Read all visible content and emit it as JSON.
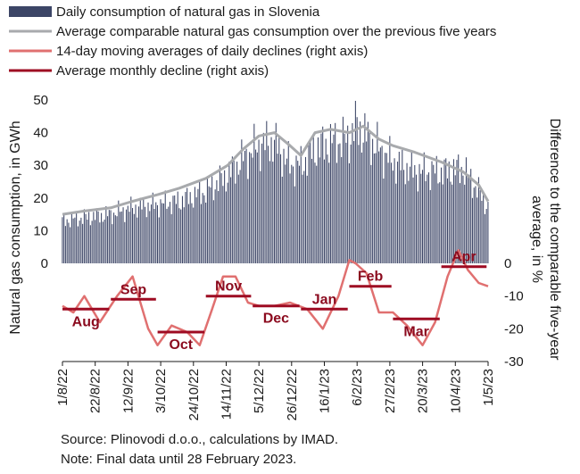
{
  "chart_data": {
    "type": "bar+line",
    "legend": [
      {
        "name": "Daily consumption of natural gas in Slovenia",
        "color": "#3c4566",
        "kind": "bar"
      },
      {
        "name": "Average comparable natural gas consumption over the previous five years",
        "color": "#a8aaad",
        "kind": "line"
      },
      {
        "name": "14-day moving averages of daily declines (right axis)",
        "color": "#e07070",
        "kind": "line"
      },
      {
        "name": "Average monthly decline (right axis)",
        "color": "#9e0b22",
        "kind": "segment"
      }
    ],
    "ylabel_left": "Natural gas consumption, in GWh",
    "ylabel_right": "Difference to the comparable five-year average, in %",
    "left_axis": {
      "min": 0,
      "max": 50,
      "ticks": [
        "0",
        "10",
        "20",
        "30",
        "40",
        "50"
      ]
    },
    "right_axis": {
      "min": -30,
      "max": 0,
      "ticks": [
        "0",
        "-10",
        "-20",
        "-30"
      ]
    },
    "x_range": [
      "2022-08-01",
      "2023-05-01"
    ],
    "x_ticks": [
      "1/8/22",
      "22/8/22",
      "12/9/22",
      "3/10/22",
      "24/10/22",
      "14/11/22",
      "5/12/22",
      "26/12/22",
      "16/1/23",
      "6/2/23",
      "27/2/23",
      "20/3/23",
      "10/4/23",
      "1/5/23"
    ],
    "five_year_avg": {
      "x": [
        "2022-08-01",
        "2022-08-15",
        "2022-09-01",
        "2022-09-15",
        "2022-10-01",
        "2022-10-15",
        "2022-11-01",
        "2022-11-15",
        "2022-11-25",
        "2022-12-05",
        "2022-12-15",
        "2022-12-25",
        "2023-01-01",
        "2023-01-10",
        "2023-01-20",
        "2023-02-01",
        "2023-02-10",
        "2023-02-20",
        "2023-03-01",
        "2023-03-15",
        "2023-04-01",
        "2023-04-15",
        "2023-04-25",
        "2023-05-01"
      ],
      "values": [
        15,
        16,
        17,
        19,
        21,
        23,
        26,
        30,
        35,
        39,
        40,
        36,
        33,
        40,
        41,
        40,
        42,
        38,
        36,
        34,
        31,
        28,
        24,
        19
      ]
    },
    "daily_consumption": {
      "x": [
        "2022-08-01",
        "2022-08-15",
        "2022-09-01",
        "2022-09-15",
        "2022-10-01",
        "2022-10-15",
        "2022-11-01",
        "2022-11-15",
        "2022-11-25",
        "2022-12-05",
        "2022-12-15",
        "2022-12-25",
        "2023-01-01",
        "2023-01-10",
        "2023-01-20",
        "2023-02-01",
        "2023-02-05",
        "2023-02-10",
        "2023-02-20",
        "2023-03-01",
        "2023-03-15",
        "2023-04-01",
        "2023-04-15",
        "2023-04-25",
        "2023-05-01"
      ],
      "values": [
        13,
        14,
        15,
        17,
        18,
        19,
        22,
        27,
        32,
        36,
        37,
        30,
        30,
        35,
        37,
        38,
        42,
        40,
        35,
        31,
        28,
        28,
        29,
        22,
        17
      ]
    },
    "moving_avg_decline": {
      "x": [
        "2022-08-01",
        "2022-08-08",
        "2022-08-15",
        "2022-08-25",
        "2022-09-05",
        "2022-09-15",
        "2022-09-25",
        "2022-10-01",
        "2022-10-10",
        "2022-10-20",
        "2022-10-28",
        "2022-11-05",
        "2022-11-12",
        "2022-11-20",
        "2022-11-28",
        "2022-12-05",
        "2022-12-15",
        "2022-12-25",
        "2023-01-05",
        "2023-01-15",
        "2023-01-25",
        "2023-02-01",
        "2023-02-05",
        "2023-02-12",
        "2023-02-20",
        "2023-03-01",
        "2023-03-10",
        "2023-03-20",
        "2023-03-28",
        "2023-04-05",
        "2023-04-12",
        "2023-04-18",
        "2023-04-25",
        "2023-05-01"
      ],
      "values": [
        -13,
        -15,
        -10,
        -18,
        -10,
        -4,
        -20,
        -25,
        -19,
        -21,
        -25,
        -14,
        -4,
        -4,
        -12,
        -13,
        -13,
        -12,
        -14,
        -20,
        -10,
        1,
        0,
        -3,
        -15,
        -15,
        -19,
        -25,
        -18,
        -4,
        4,
        -2,
        -6,
        -7
      ]
    },
    "monthly_decline": [
      {
        "label": "Aug",
        "start": "2022-08-01",
        "end": "2022-08-31",
        "value": -14
      },
      {
        "label": "Sep",
        "start": "2022-09-01",
        "end": "2022-09-30",
        "value": -11
      },
      {
        "label": "Oct",
        "start": "2022-10-01",
        "end": "2022-10-31",
        "value": -21
      },
      {
        "label": "Nov",
        "start": "2022-11-01",
        "end": "2022-11-30",
        "value": -10
      },
      {
        "label": "Dec",
        "start": "2022-12-01",
        "end": "2022-12-31",
        "value": -13
      },
      {
        "label": "Jan",
        "start": "2023-01-01",
        "end": "2023-01-31",
        "value": -14
      },
      {
        "label": "Feb",
        "start": "2023-02-01",
        "end": "2023-02-28",
        "value": -7
      },
      {
        "label": "Mar",
        "start": "2023-03-01",
        "end": "2023-03-31",
        "value": -17
      },
      {
        "label": "Apr",
        "start": "2023-04-01",
        "end": "2023-04-30",
        "value": -1
      }
    ]
  },
  "source_lines": [
    "Source: Plinovodi d.o.o., calculations by IMAD.",
    "Note: Final data until 28 February 2023."
  ]
}
